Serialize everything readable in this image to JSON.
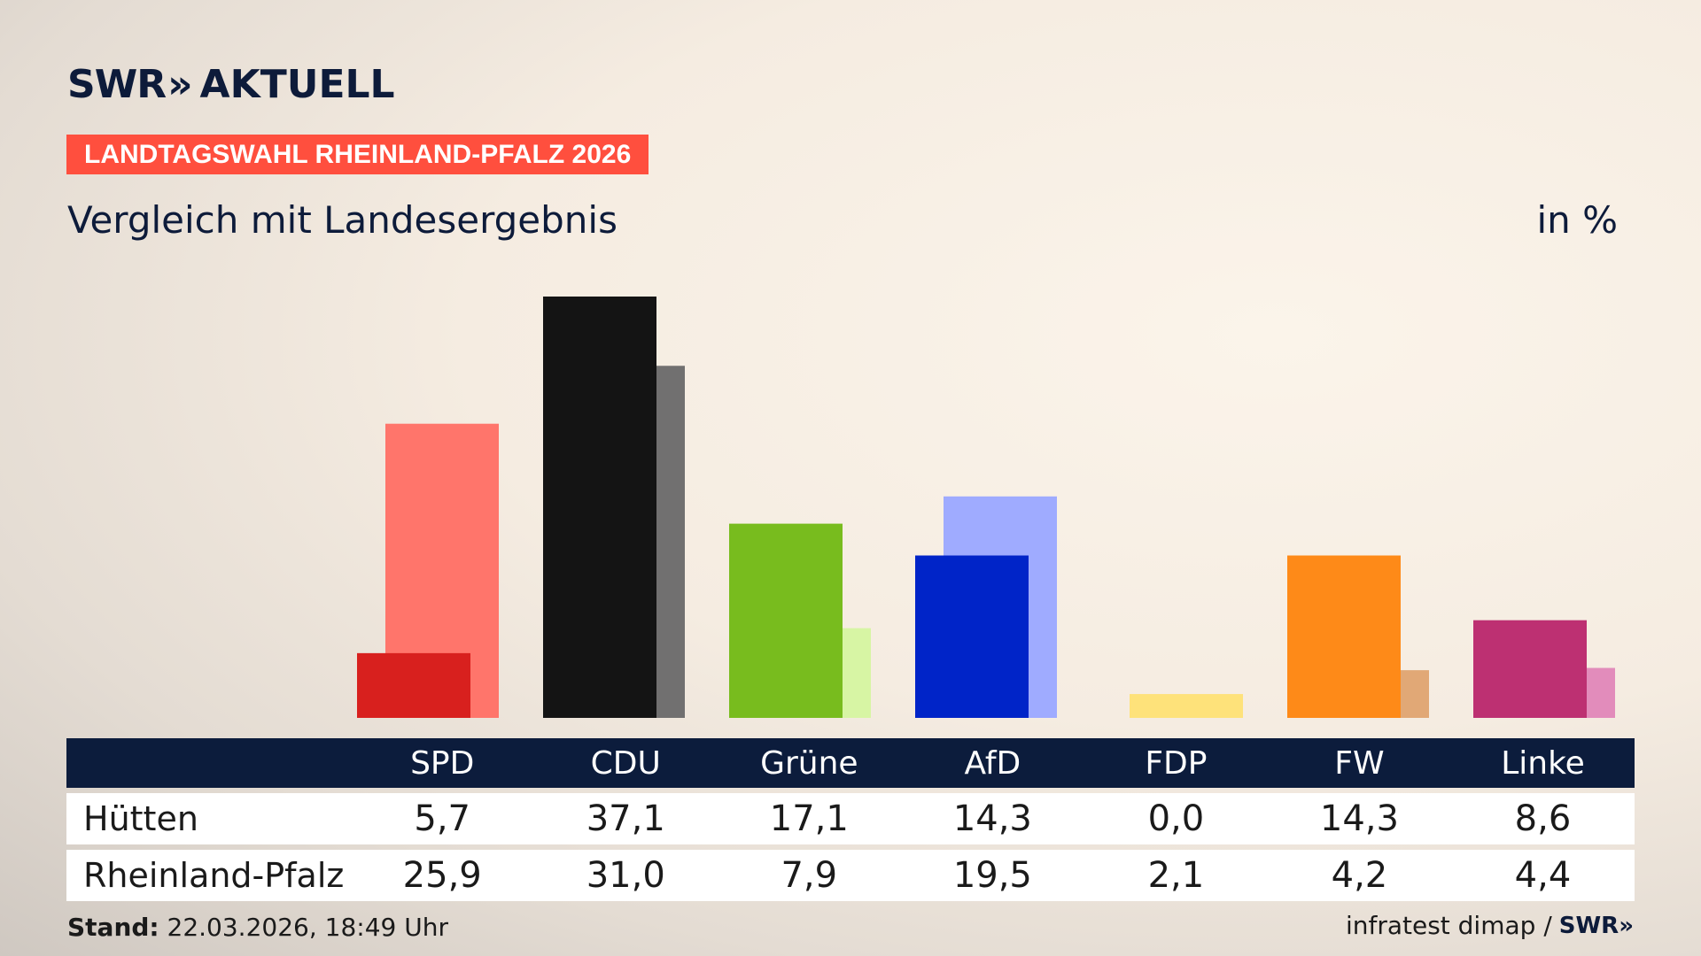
{
  "header": {
    "logo_swr": "SWR",
    "logo_chevrons": "»",
    "logo_aktuell": "AKTUELL",
    "banner": "LANDTAGSWAHL RHEINLAND-PFALZ 2026",
    "subtitle": "Vergleich mit Landesergebnis",
    "unit": "in %"
  },
  "colors": {
    "banner": "#ff4f3e",
    "header_bar": "#0c1c3c"
  },
  "chart_data": {
    "type": "bar",
    "categories": [
      "SPD",
      "CDU",
      "Grüne",
      "AfD",
      "FDP",
      "FW",
      "Linke"
    ],
    "series": [
      {
        "name": "Hütten",
        "values": [
          5.7,
          37.1,
          17.1,
          14.3,
          0.0,
          14.3,
          8.6
        ],
        "colors": [
          "#d8201e",
          "#141414",
          "#78bc1e",
          "#0024c8",
          "#fde26c",
          "#fe8a18",
          "#bd3072"
        ]
      },
      {
        "name": "Rheinland-Pfalz",
        "values": [
          25.9,
          31.0,
          7.9,
          19.5,
          2.1,
          4.2,
          4.4
        ],
        "colors": [
          "#ff756b",
          "#717070",
          "#d7f5a4",
          "#9fabff",
          "#fee27a",
          "#e1a876",
          "#e28cbb"
        ]
      }
    ],
    "ylim": [
      0,
      37.1
    ]
  },
  "table": {
    "headers": [
      "SPD",
      "CDU",
      "Grüne",
      "AfD",
      "FDP",
      "FW",
      "Linke"
    ],
    "rows": [
      {
        "label": "Hütten",
        "values": [
          "5,7",
          "37,1",
          "17,1",
          "14,3",
          "0,0",
          "14,3",
          "8,6"
        ]
      },
      {
        "label": "Rheinland-Pfalz",
        "values": [
          "25,9",
          "31,0",
          "7,9",
          "19,5",
          "2,1",
          "4,2",
          "4,4"
        ]
      }
    ]
  },
  "footer": {
    "stand_label": "Stand:",
    "stand_value": " 22.03.2026, 18:49 Uhr",
    "source": "infratest dimap /",
    "source_logo": "SWR»"
  }
}
